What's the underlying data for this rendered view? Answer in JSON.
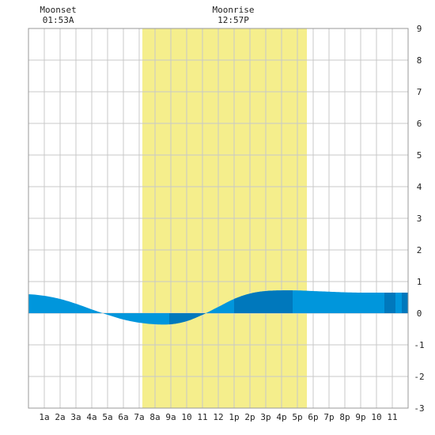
{
  "chart_data": {
    "type": "area",
    "title": "",
    "xlabel": "",
    "ylabel": "",
    "x_ticks": [
      "1a",
      "2a",
      "3a",
      "4a",
      "5a",
      "6a",
      "7a",
      "8a",
      "9a",
      "10",
      "11",
      "12",
      "1p",
      "2p",
      "3p",
      "4p",
      "5p",
      "6p",
      "7p",
      "8p",
      "9p",
      "10",
      "11"
    ],
    "y_ticks": [
      "-3",
      "-2",
      "-1",
      "0",
      "1",
      "2",
      "3",
      "4",
      "5",
      "6",
      "7",
      "8",
      "9"
    ],
    "ylim": [
      -3,
      9
    ],
    "xlim_hours": [
      0,
      24
    ],
    "daylight_hours": [
      7.2,
      17.6
    ],
    "annotations": [
      {
        "label": "Moonset",
        "time": "01:53A",
        "hour": 1.88
      },
      {
        "label": "Moonrise",
        "time": "12:57P",
        "hour": 12.95
      }
    ],
    "series": [
      {
        "hours": [
          0,
          1,
          2,
          3,
          4,
          5,
          6,
          7,
          8,
          9,
          10,
          11,
          12,
          13,
          14,
          15,
          16,
          17,
          18,
          19,
          20,
          21,
          22,
          23,
          24
        ],
        "values": [
          0.6,
          0.55,
          0.45,
          0.3,
          0.12,
          -0.05,
          -0.2,
          -0.3,
          -0.35,
          -0.35,
          -0.25,
          -0.05,
          0.2,
          0.45,
          0.62,
          0.7,
          0.72,
          0.72,
          0.7,
          0.68,
          0.66,
          0.65,
          0.65,
          0.65,
          0.65
        ]
      }
    ],
    "colors": {
      "daylight": "#f5ee8c",
      "tide": "#0096dc",
      "tide_dark": "#0078bc",
      "grid": "#c8c8c8",
      "frame": "#999999"
    }
  }
}
